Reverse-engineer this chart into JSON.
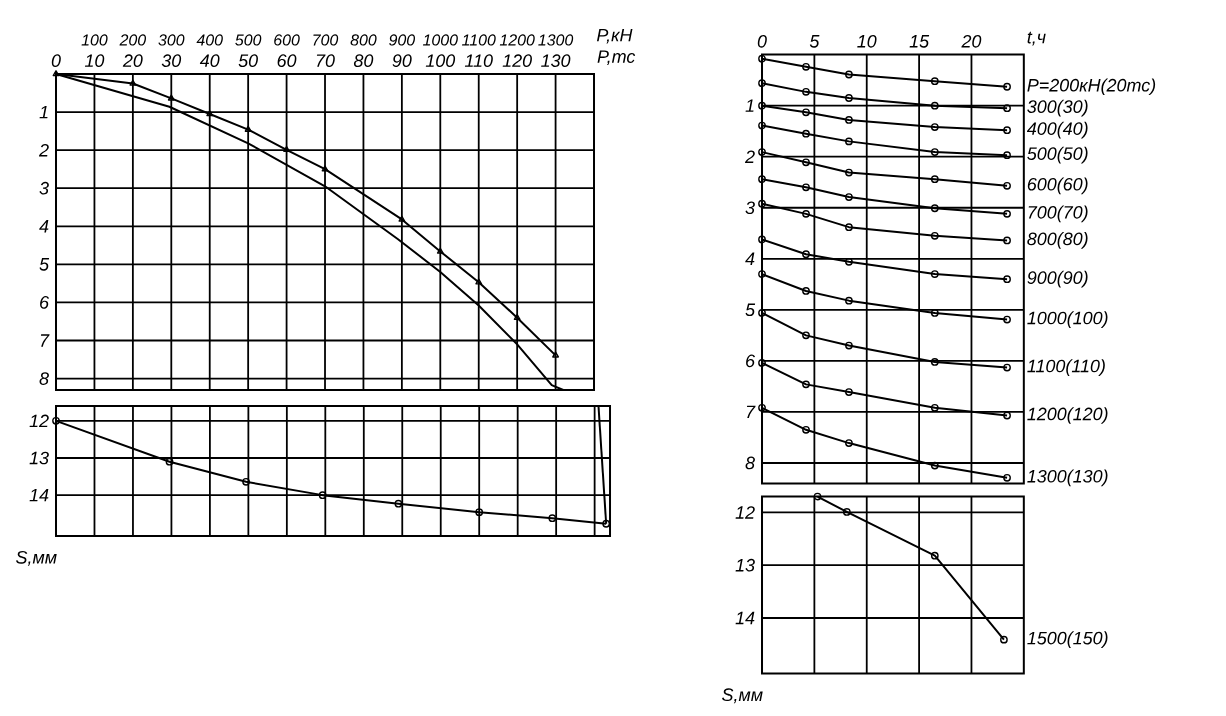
{
  "chart_data": [
    {
      "type": "line",
      "x2label": "P,кН",
      "xlabel": "P,тс",
      "xlim": [
        0,
        140
      ],
      "ylim": [
        8.3,
        0
      ],
      "x2lim": [
        0,
        1400
      ],
      "xticks": [
        0,
        10,
        20,
        30,
        40,
        50,
        60,
        70,
        80,
        90,
        100,
        110,
        120,
        130
      ],
      "x2ticks": [
        100,
        200,
        300,
        400,
        500,
        600,
        700,
        800,
        900,
        1000,
        1100,
        1200,
        1300
      ],
      "yticks": [
        1,
        2,
        3,
        4,
        5,
        6,
        7,
        8
      ],
      "grid": true,
      "series": [
        {
          "type": "line",
          "color": "#000000",
          "marker": "none",
          "x": [
            0,
            29.5,
            50,
            70,
            89,
            100,
            110,
            120,
            129,
            132
          ],
          "values": [
            0,
            0.86,
            1.82,
            2.95,
            4.34,
            5.2,
            6.08,
            7.1,
            8.17,
            8.3
          ]
        },
        {
          "type": "line",
          "color": "#000000",
          "marker": "triangle",
          "x": [
            0,
            20,
            30,
            40,
            50,
            60,
            70,
            90,
            100,
            110,
            120,
            130
          ],
          "values": [
            0,
            0.25,
            0.64,
            1.05,
            1.46,
            1.99,
            2.5,
            3.82,
            4.66,
            5.47,
            6.4,
            7.39
          ]
        }
      ]
    },
    {
      "type": "line",
      "ylabel": "S,мм",
      "xlim": [
        0,
        144
      ],
      "ylim": [
        15.1,
        11.6
      ],
      "xticks": [
        0,
        10,
        20,
        30,
        40,
        50,
        60,
        70,
        80,
        90,
        100,
        110,
        120,
        130,
        140
      ],
      "yticks": [
        12,
        13,
        14
      ],
      "grid": true,
      "tick_labels": "y",
      "series": [
        {
          "type": "line",
          "color": "#000000",
          "marker": "circle",
          "x": [
            0,
            29.5,
            49.4,
            69.3,
            89,
            110,
            129,
            143
          ],
          "values": [
            12.0,
            13.1,
            13.64,
            14.0,
            14.23,
            14.46,
            14.62,
            14.77
          ]
        },
        {
          "type": "line",
          "color": "#000000",
          "marker": "none",
          "x": [
            141,
            143
          ],
          "values": [
            11.6,
            14.77
          ]
        }
      ]
    },
    {
      "type": "line",
      "xlabel": "t,ч",
      "xlim": [
        0,
        25
      ],
      "ylim": [
        8.4,
        0
      ],
      "xticks": [
        0,
        5,
        10,
        15,
        20
      ],
      "yticks": [
        1,
        2,
        3,
        4,
        5,
        6,
        7,
        8
      ],
      "grid": true,
      "marker": "circle",
      "series": [
        {
          "name": "P=200кН(20тс)",
          "color": "#000000",
          "x": [
            0,
            4.2,
            8.3,
            16.5,
            23.4
          ],
          "values": [
            0.08,
            0.24,
            0.39,
            0.52,
            0.63
          ]
        },
        {
          "name": "300(30)",
          "color": "#000000",
          "x": [
            0,
            4.2,
            8.3,
            16.5,
            23.4
          ],
          "values": [
            0.56,
            0.73,
            0.85,
            1.0,
            1.05
          ]
        },
        {
          "name": "400(40)",
          "color": "#000000",
          "x": [
            0,
            4.2,
            8.3,
            16.5,
            23.4
          ],
          "values": [
            1.0,
            1.13,
            1.28,
            1.42,
            1.48
          ]
        },
        {
          "name": "500(50)",
          "color": "#000000",
          "x": [
            0,
            4.2,
            8.3,
            16.5,
            23.4
          ],
          "values": [
            1.39,
            1.55,
            1.7,
            1.91,
            1.97
          ]
        },
        {
          "name": "600(60)",
          "color": "#000000",
          "x": [
            0,
            4.2,
            8.3,
            16.5,
            23.4
          ],
          "values": [
            1.91,
            2.11,
            2.31,
            2.44,
            2.57
          ]
        },
        {
          "name": "700(70)",
          "color": "#000000",
          "x": [
            0,
            4.2,
            8.3,
            16.5,
            23.4
          ],
          "values": [
            2.44,
            2.6,
            2.79,
            3.01,
            3.12
          ]
        },
        {
          "name": "800(80)",
          "color": "#000000",
          "x": [
            0,
            4.2,
            8.3,
            16.5,
            23.4
          ],
          "values": [
            2.92,
            3.12,
            3.38,
            3.55,
            3.64
          ]
        },
        {
          "name": "900(90)",
          "color": "#000000",
          "x": [
            0,
            4.2,
            8.3,
            16.5,
            23.4
          ],
          "values": [
            3.62,
            3.91,
            4.06,
            4.3,
            4.4
          ]
        },
        {
          "name": "1000(100)",
          "color": "#000000",
          "x": [
            0,
            4.2,
            8.3,
            16.5,
            23.4
          ],
          "values": [
            4.3,
            4.63,
            4.82,
            5.06,
            5.19
          ]
        },
        {
          "name": "1100(110)",
          "color": "#000000",
          "x": [
            0,
            4.2,
            8.3,
            16.5,
            23.4
          ],
          "values": [
            5.06,
            5.5,
            5.7,
            6.02,
            6.13
          ]
        },
        {
          "name": "1200(120)",
          "color": "#000000",
          "x": [
            0,
            4.2,
            8.3,
            16.5,
            23.4
          ],
          "values": [
            6.04,
            6.46,
            6.61,
            6.92,
            7.07
          ]
        },
        {
          "name": "1300(130)",
          "color": "#000000",
          "x": [
            0,
            4.2,
            8.3,
            16.5,
            23.4
          ],
          "values": [
            6.92,
            7.35,
            7.61,
            8.05,
            8.29
          ]
        }
      ]
    },
    {
      "type": "line",
      "ylabel": "S,мм",
      "xlim": [
        0,
        25
      ],
      "ylim": [
        15.05,
        11.7
      ],
      "xticks": [
        0,
        5,
        10,
        15,
        20
      ],
      "yticks": [
        12,
        13,
        14
      ],
      "grid": true,
      "tick_labels": "y",
      "marker": "circle",
      "series": [
        {
          "name": "1500(150)",
          "color": "#000000",
          "x": [
            5.3,
            8.1,
            16.5,
            23.1
          ],
          "values": [
            11.7,
            11.99,
            12.82,
            14.41
          ]
        }
      ]
    }
  ]
}
